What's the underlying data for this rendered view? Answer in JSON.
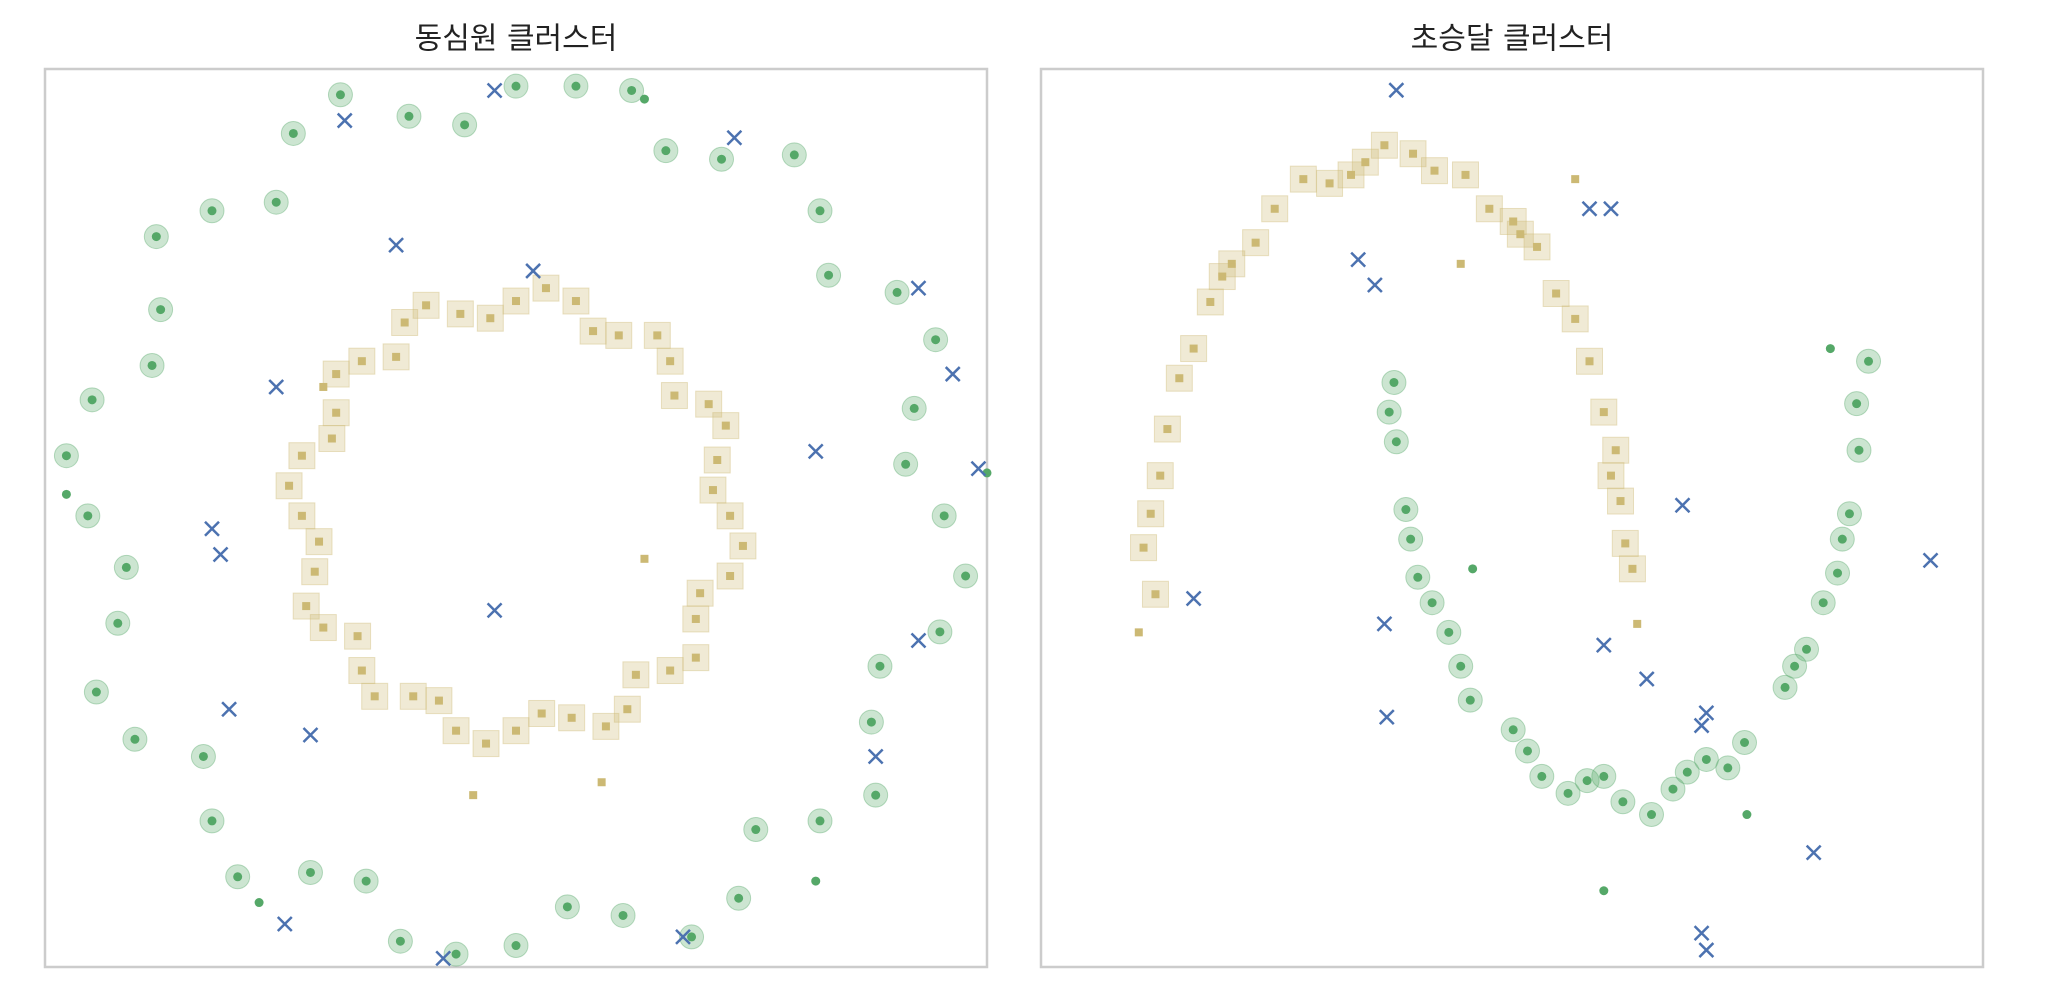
{
  "chart_data": [
    {
      "type": "scatter",
      "title": "동심원 클러스터",
      "xlim": [
        -1.1,
        1.1
      ],
      "ylim": [
        -1.05,
        1.04
      ],
      "series": [
        {
          "color": "#55a868",
          "marker": "o",
          "core": true,
          "x": [
            1.0,
            0.93,
            0.89,
            0.71,
            0.48,
            0.27,
            0,
            -0.25,
            -0.52,
            -0.71,
            -0.83,
            -0.99,
            -1.0,
            -0.93,
            -0.89,
            -0.71,
            -0.48,
            -0.27,
            0,
            0.25,
            0.52,
            0.71,
            0.83,
            0.99,
            0.91,
            0.98,
            0.73,
            0.65,
            0.35,
            0.14,
            -0.12,
            -0.41,
            -0.56,
            -0.84,
            -0.85,
            -1.05,
            -0.91,
            -0.98,
            -0.73,
            -0.65,
            -0.35,
            -0.14,
            0.12,
            0.41,
            0.56,
            0.84,
            0.85,
            1.05
          ],
          "y": [
            0,
            0.25,
            0.52,
            0.71,
            0.83,
            0.99,
            1.0,
            0.93,
            0.89,
            0.71,
            0.48,
            0.27,
            0,
            -0.25,
            -0.52,
            -0.71,
            -0.83,
            -0.99,
            -1,
            -0.93,
            -0.89,
            -0.71,
            -0.48,
            -0.27,
            0.12,
            0.41,
            0.56,
            0.84,
            0.85,
            1.0,
            0.91,
            0.98,
            0.73,
            0.65,
            0.35,
            0.14,
            -0.12,
            -0.41,
            -0.56,
            -0.84,
            -0.85,
            -1.02,
            -0.91,
            -0.98,
            -0.73,
            -0.65,
            -0.35,
            -0.14
          ]
        },
        {
          "color": "#55a868",
          "marker": "o",
          "core": false,
          "x": [
            1.1,
            -1.05,
            0.3,
            -0.6,
            0.7
          ],
          "y": [
            0.1,
            0.05,
            0.97,
            -0.9,
            -0.85
          ]
        },
        {
          "color": "#ccb974",
          "marker": "s",
          "core": true,
          "x": [
            0.5,
            0.47,
            0.45,
            0.36,
            0.24,
            0.14,
            0,
            -0.13,
            -0.26,
            -0.36,
            -0.42,
            -0.5,
            -0.5,
            -0.47,
            -0.45,
            -0.36,
            -0.24,
            -0.14,
            0,
            0.13,
            0.26,
            0.36,
            0.42,
            0.5,
            0.46,
            0.49,
            0.37,
            0.33,
            0.18,
            0.07,
            -0.06,
            -0.21,
            -0.28,
            -0.42,
            -0.43,
            -0.53,
            -0.46,
            -0.49,
            -0.37,
            -0.33,
            -0.18,
            -0.07,
            0.06,
            0.21,
            0.28,
            0.42,
            0.43,
            0.53
          ],
          "y": [
            0,
            0.13,
            0.26,
            0.36,
            0.42,
            0.5,
            0.5,
            0.47,
            0.45,
            0.36,
            0.24,
            0.14,
            0,
            -0.13,
            -0.26,
            -0.36,
            -0.42,
            -0.5,
            -0.5,
            -0.47,
            -0.45,
            -0.36,
            -0.24,
            -0.14,
            0.06,
            0.21,
            0.28,
            0.42,
            0.43,
            0.53,
            0.46,
            0.49,
            0.37,
            0.33,
            0.18,
            0.07,
            -0.06,
            -0.21,
            -0.28,
            -0.42,
            -0.43,
            -0.53,
            -0.46,
            -0.49,
            -0.37,
            -0.33,
            -0.18,
            -0.07
          ]
        },
        {
          "color": "#ccb974",
          "marker": "s",
          "core": false,
          "x": [
            -0.45,
            0.2,
            -0.1,
            0.3
          ],
          "y": [
            0.3,
            -0.62,
            -0.65,
            -0.1
          ]
        },
        {
          "color": "#4c72b0",
          "marker": "x",
          "core": false,
          "x": [
            -0.05,
            -0.4,
            0.51,
            -0.28,
            0.04,
            -0.56,
            0.94,
            1.02,
            0.7,
            1.08,
            -0.71,
            -0.69,
            -0.05,
            0.94,
            -0.67,
            -0.48,
            0.84,
            -0.54,
            -0.17,
            0.39
          ],
          "y": [
            0.99,
            0.92,
            0.88,
            0.63,
            0.57,
            0.3,
            0.53,
            0.33,
            0.15,
            0.11,
            -0.03,
            -0.09,
            -0.22,
            -0.29,
            -0.45,
            -0.51,
            -0.56,
            -0.95,
            -1.03,
            -0.98
          ]
        }
      ]
    },
    {
      "type": "scatter",
      "title": "초승달 클러스터",
      "xlim": [
        -1.46,
        2.49
      ],
      "ylim": [
        -0.91,
        1.21
      ],
      "series": [
        {
          "color": "#ccb974",
          "marker": "s",
          "core": true,
          "x": [
            1.02,
            0.97,
            0.95,
            0.84,
            0.78,
            0.62,
            0.52,
            0.32,
            0.19,
            -0.02,
            -0.16,
            -0.36,
            -0.48,
            -0.66,
            -0.75,
            -0.88,
            -0.93,
            -1.0,
            -0.98,
            0.99,
            0.9,
            0.7,
            0.42,
            0.1,
            -0.25,
            -0.56,
            -0.82,
            -0.96,
            -1.03,
            0.93,
            0.55,
            -0.1,
            -0.7
          ],
          "y": [
            0.03,
            0.19,
            0.31,
            0.52,
            0.62,
            0.79,
            0.85,
            0.96,
            0.97,
            1.03,
            0.96,
            0.95,
            0.88,
            0.75,
            0.66,
            0.48,
            0.36,
            0.16,
            -0.03,
            0.09,
            0.4,
            0.68,
            0.88,
            1.01,
            0.94,
            0.8,
            0.55,
            0.25,
            0.08,
            0.25,
            0.82,
            0.99,
            0.72
          ]
        },
        {
          "color": "#ccb974",
          "marker": "s",
          "core": false,
          "x": [
            -1.05,
            0.3,
            0.78,
            1.04
          ],
          "y": [
            -0.12,
            0.75,
            0.95,
            -0.1
          ]
        },
        {
          "color": "#55a868",
          "marker": "o",
          "core": true,
          "x": [
            0.02,
            0.03,
            0.07,
            0.12,
            0.25,
            0.34,
            0.52,
            0.64,
            0.83,
            0.98,
            1.19,
            1.33,
            1.49,
            1.66,
            1.75,
            1.88,
            1.93,
            1.97,
            2.01,
            0.0,
            0.09,
            0.3,
            0.58,
            0.9,
            1.1,
            1.42,
            1.7,
            1.9,
            1.96,
            0.18,
            0.75,
            1.25,
            1.82
          ],
          "y": [
            0.47,
            0.33,
            0.17,
            0.01,
            -0.12,
            -0.28,
            -0.35,
            -0.46,
            -0.47,
            -0.52,
            -0.49,
            -0.42,
            -0.38,
            -0.25,
            -0.16,
            0.02,
            0.16,
            0.31,
            0.52,
            0.4,
            0.1,
            -0.2,
            -0.4,
            -0.46,
            -0.55,
            -0.44,
            -0.2,
            0.1,
            0.42,
            -0.05,
            -0.5,
            -0.45,
            -0.05
          ]
        },
        {
          "color": "#55a868",
          "marker": "o",
          "core": false,
          "x": [
            0.35,
            1.85,
            0.9,
            1.5
          ],
          "y": [
            0.03,
            0.55,
            -0.73,
            -0.55
          ]
        },
        {
          "color": "#4c72b0",
          "marker": "x",
          "core": false,
          "x": [
            0.03,
            -0.13,
            -0.06,
            0.84,
            0.93,
            -0.82,
            1.23,
            -0.02,
            0.9,
            1.08,
            -0.01,
            1.33,
            1.31,
            2.27,
            1.78,
            1.31,
            1.33
          ],
          "y": [
            1.16,
            0.76,
            0.7,
            0.88,
            0.88,
            -0.04,
            0.18,
            -0.1,
            -0.15,
            -0.23,
            -0.32,
            -0.31,
            -0.34,
            0.05,
            -0.64,
            -0.83,
            -0.87
          ]
        }
      ]
    }
  ]
}
